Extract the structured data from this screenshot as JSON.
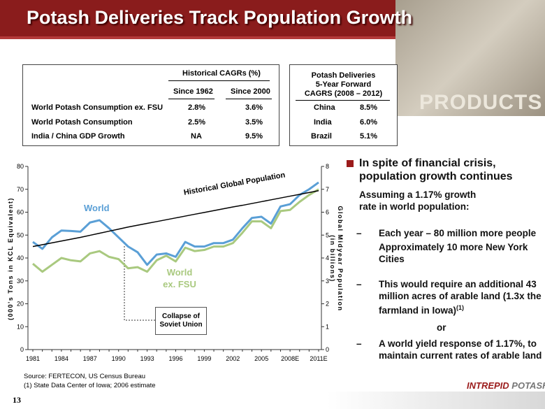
{
  "header": {
    "title": "Potash Deliveries Track Population Growth",
    "image_text": "PRODUCTS"
  },
  "cagr_table": {
    "title": "Historical CAGRs (%)",
    "columns": [
      "Since 1962",
      "Since 2000"
    ],
    "rows": [
      [
        "World Potash Consumption ex. FSU",
        "2.8%",
        "3.6%"
      ],
      [
        "World Potash Consumption",
        "2.5%",
        "3.5%"
      ],
      [
        "India / China GDP Growth",
        "NA",
        "9.5%"
      ]
    ]
  },
  "forward_table": {
    "title": [
      "Potash Deliveries",
      "5-Year Forward",
      "CAGRS (2008 – 2012)"
    ],
    "rows": [
      [
        "China",
        "8.5%"
      ],
      [
        "India",
        "6.0%"
      ],
      [
        "Brazil",
        "5.1%"
      ]
    ]
  },
  "chart_data": {
    "type": "line",
    "ylabel": "(000's Tons in KCL Equivalent)",
    "y2label": [
      "Global Midyear Population",
      "(in billions)"
    ],
    "categories": [
      "1981",
      null,
      null,
      "1984",
      null,
      null,
      "1987",
      null,
      null,
      "1990",
      null,
      null,
      "1993",
      null,
      null,
      "1996",
      null,
      null,
      "1999",
      null,
      null,
      "2002",
      null,
      null,
      "2005",
      null,
      null,
      "2008E",
      null,
      null,
      "2011E"
    ],
    "ylim": [
      0,
      80
    ],
    "yticks": [
      0,
      10,
      20,
      30,
      40,
      50,
      60,
      70,
      80
    ],
    "y2lim": [
      0,
      8
    ],
    "y2ticks": [
      0,
      1,
      2,
      3,
      4,
      5,
      6,
      7,
      8
    ],
    "series": [
      {
        "name": "World",
        "color": "#5a9fd6",
        "values": [
          47,
          44,
          49,
          52,
          51.8,
          51.5,
          55.5,
          56.5,
          53,
          49,
          45,
          42.5,
          37,
          41.5,
          42,
          40.5,
          47,
          45,
          45,
          46.5,
          46.5,
          48,
          53,
          57.5,
          58,
          55,
          62.5,
          63.5,
          67.5,
          70,
          73
        ]
      },
      {
        "name": "World ex. FSU",
        "color": "#a9c97f",
        "values": [
          37.5,
          34,
          37,
          40,
          39,
          38.5,
          42,
          43,
          40.5,
          39.5,
          35.5,
          36,
          34,
          39,
          41,
          38.5,
          44.5,
          43,
          43.5,
          45,
          45,
          46.5,
          51,
          56,
          56,
          53,
          60.5,
          61,
          64.5,
          67.5,
          70
        ]
      },
      {
        "name": "Historical Global Population",
        "color": "#000000",
        "axis": "y2",
        "values": [
          4.5,
          4.58,
          4.66,
          4.74,
          4.82,
          4.9,
          4.99,
          5.08,
          5.17,
          5.26,
          5.35,
          5.43,
          5.51,
          5.59,
          5.67,
          5.75,
          5.83,
          5.91,
          5.99,
          6.07,
          6.15,
          6.23,
          6.3,
          6.38,
          6.46,
          6.54,
          6.62,
          6.7,
          6.78,
          6.86,
          6.94
        ]
      }
    ],
    "annotation": "Collapse of Soviet Union"
  },
  "bullets": {
    "main": "In spite of financial crisis, population growth continues",
    "assumption": "Assuming a 1.17% growth rate in world population:",
    "point1": "Each year – 80 million more people",
    "point1_note": "Approximately 10 more New York Cities",
    "point2": "This would require an additional 43 million acres of arable land (1.3x the farmland in Iowa)",
    "point2_ref": "(1)",
    "or": "or",
    "point3": "A world yield response of 1.17%, to maintain current rates of arable land"
  },
  "footer": {
    "source": "Source:  FERTECON, US Census Bureau",
    "note": "(1) State Data Center of Iowa; 2006 estimate",
    "page": "13",
    "logo": [
      "INTREPID",
      "POTASH"
    ]
  }
}
